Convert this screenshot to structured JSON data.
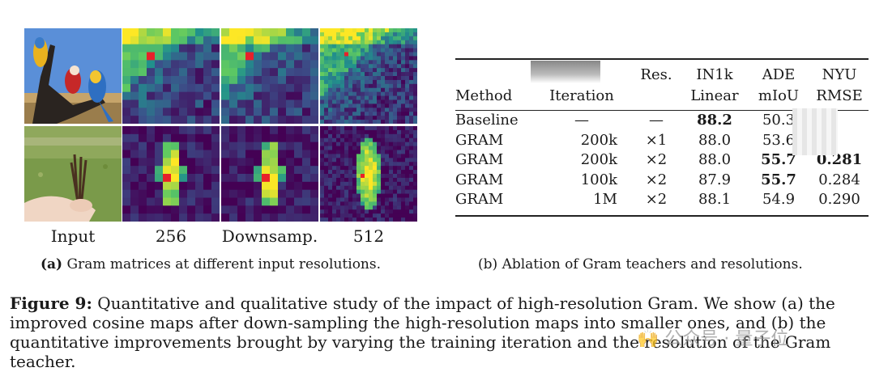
{
  "panel_a": {
    "column_labels": [
      "Input",
      "256",
      "Downsamp.",
      "512"
    ],
    "caption_tag": "(a)",
    "caption_text": "Gram matrices at different input resolutions.",
    "rows": [
      {
        "input_scene": "parrots on a branch under blue sky"
      },
      {
        "input_scene": "hand holding twigs over grass field"
      }
    ],
    "colors": {
      "low": "#3b0f70",
      "mid": "#21918c",
      "high": "#fde725",
      "marker": "#e8202a"
    }
  },
  "panel_b": {
    "caption_tag": "(b)",
    "caption_text": "Ablation of Gram teachers and resolutions.",
    "header_row1": {
      "method": "",
      "iteration": "",
      "res": "Res.",
      "linear": "IN1k",
      "ade": "ADE",
      "nyu": "NYU"
    },
    "header_row2": {
      "method": "Method",
      "iteration": "Iteration",
      "res": "",
      "linear": "Linear",
      "ade": "mIoU",
      "nyu": "RMSE"
    },
    "rows": [
      {
        "method": "Baseline",
        "iteration": "—",
        "res": "—",
        "linear": "88.2",
        "ade": "50.3",
        "nyu": ""
      },
      {
        "method": "GRAM",
        "iteration": "200k",
        "res": "×1",
        "linear": "88.0",
        "ade": "53.6",
        "nyu": ""
      },
      {
        "method": "GRAM",
        "iteration": "200k",
        "res": "×2",
        "linear": "88.0",
        "ade": "55.7",
        "nyu": "0.281"
      },
      {
        "method": "GRAM",
        "iteration": "100k",
        "res": "×2",
        "linear": "87.9",
        "ade": "55.7",
        "nyu": "0.284"
      },
      {
        "method": "GRAM",
        "iteration": "1M",
        "res": "×2",
        "linear": "88.1",
        "ade": "54.9",
        "nyu": "0.290"
      }
    ]
  },
  "figure_caption": {
    "label": "Figure 9:",
    "text": "Quantitative and qualitative study of the impact of high-resolution Gram. We show (a) the improved cosine maps after down-sampling the high-resolution maps into smaller ones, and (b) the quantitative improvements brought by varying the training iteration and the resolution of the Gram teacher."
  },
  "watermark": "🙌 公众号 · 量子位"
}
